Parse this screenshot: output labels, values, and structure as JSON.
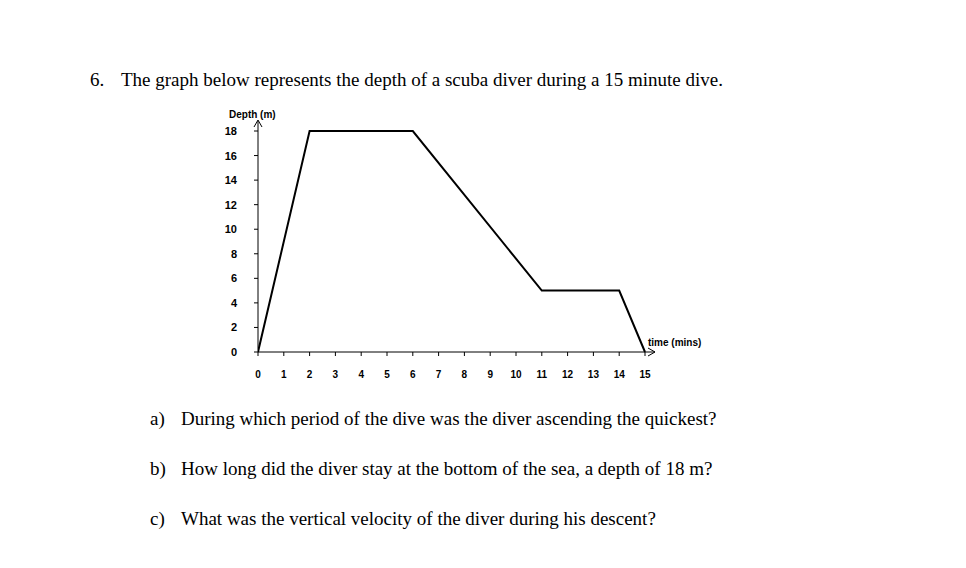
{
  "question": {
    "number": "6.",
    "text": "The graph below represents the depth of a scuba diver during a 15 minute dive.",
    "parts": [
      {
        "label": "a)",
        "text": "During which period of the dive was the diver ascending the quickest?"
      },
      {
        "label": "b)",
        "text": "How long did the diver stay at the bottom of the sea, a depth of 18 m?"
      },
      {
        "label": "c)",
        "text": "What was the vertical velocity of the diver during his descent?"
      }
    ]
  },
  "chart_data": {
    "type": "line",
    "y_label": "Depth (m)",
    "x_label": "time (mins)",
    "x": [
      0,
      2,
      6,
      11,
      14,
      15
    ],
    "values": [
      0,
      18,
      18,
      5,
      5,
      0
    ],
    "color": "#000000",
    "xlim": [
      0,
      15
    ],
    "ylim": [
      0,
      18
    ],
    "xticks": [
      0,
      1,
      2,
      3,
      4,
      5,
      6,
      7,
      8,
      9,
      10,
      11,
      12,
      13,
      14,
      15
    ],
    "yticks": [
      0,
      2,
      4,
      6,
      8,
      10,
      12,
      14,
      16,
      18
    ],
    "grid": false
  }
}
